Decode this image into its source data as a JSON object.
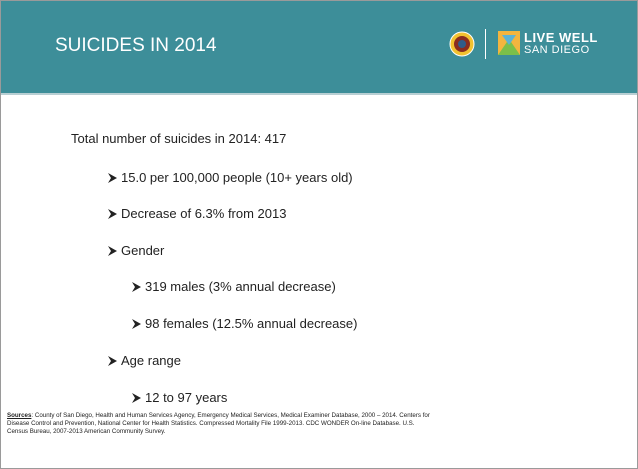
{
  "header": {
    "title": "SUICIDES IN 2014",
    "logo_text": [
      "LIVE WELL",
      "SAN DIEGO"
    ]
  },
  "body": {
    "intro": "Total number of suicides in 2014: 417",
    "bullets": [
      {
        "text": "15.0 per 100,000 people (10+ years old)",
        "level": 1
      },
      {
        "text": "Decrease of 6.3% from 2013",
        "level": 1
      },
      {
        "text": "Gender",
        "level": 1
      },
      {
        "text": "319 males (3% annual decrease)",
        "level": 2
      },
      {
        "text": "98 females (12.5% annual decrease)",
        "level": 2
      },
      {
        "text": "Age range",
        "level": 1
      },
      {
        "text": "12 to 97 years",
        "level": 2
      }
    ]
  },
  "sources": {
    "label": "Sources",
    "text": ": County of San Diego, Health and Human Services Agency, Emergency Medical Services, Medical Examiner Database, 2000 – 2014. Centers for Disease Control and Prevention, National Center for Health Statistics. Compressed Mortality File 1999-2013. CDC WONDER On-line Database. U.S. Census Bureau, 2007-2013 American Community Survey."
  }
}
